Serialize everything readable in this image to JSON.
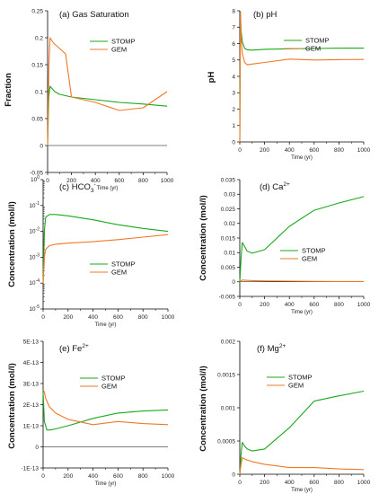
{
  "colors": {
    "STOMP": "#1aa81a",
    "GEM": "#f07828",
    "axis": "#000000"
  },
  "chart_data": [
    {
      "type": "line",
      "title": "(a) Gas Saturation",
      "xlabel": "Time (yr)",
      "ylabel": "Fraction",
      "xlim": [
        0,
        1000
      ],
      "ylim": [
        -0.05,
        0.25
      ],
      "xticks": [
        0,
        200,
        400,
        600,
        800,
        1000
      ],
      "xtick_labels": [
        "0",
        "200",
        "400",
        "600",
        "800",
        "1000"
      ],
      "yticks": [
        -0.05,
        0,
        0.05,
        0.1,
        0.15,
        0.2,
        0.25
      ],
      "ytick_labels": [
        "-0.05",
        "0",
        "0.05",
        "0.1",
        "0.15",
        "0.2",
        "0.25"
      ],
      "legend_position": "top-right",
      "series": [
        {
          "name": "STOMP",
          "x": [
            0,
            10,
            20,
            40,
            60,
            100,
            200,
            400,
            600,
            800,
            1000
          ],
          "y": [
            0.0,
            0.09,
            0.11,
            0.105,
            0.1,
            0.095,
            0.09,
            0.085,
            0.08,
            0.077,
            0.073
          ]
        },
        {
          "name": "GEM",
          "x": [
            0,
            10,
            20,
            50,
            100,
            150,
            200,
            400,
            600,
            800,
            1000
          ],
          "y": [
            0.0,
            0.14,
            0.2,
            0.19,
            0.18,
            0.17,
            0.09,
            0.08,
            0.065,
            0.07,
            0.1
          ]
        }
      ]
    },
    {
      "type": "line",
      "title": "(b) pH",
      "xlabel": "Time (yr)",
      "ylabel": "pH",
      "xlim": [
        0,
        1000
      ],
      "ylim": [
        0,
        8
      ],
      "xticks": [
        0,
        200,
        400,
        600,
        800,
        1000
      ],
      "xtick_labels": [
        "0",
        "200",
        "400",
        "600",
        "800",
        "1000"
      ],
      "yticks": [
        0,
        1,
        2,
        3,
        4,
        5,
        6,
        7,
        8
      ],
      "ytick_labels": [
        "0",
        "1",
        "2",
        "3",
        "4",
        "5",
        "6",
        "7",
        "8"
      ],
      "legend_position": "top-right",
      "series": [
        {
          "name": "STOMP",
          "x": [
            0,
            5,
            10,
            20,
            40,
            60,
            100,
            200,
            400,
            600,
            800,
            1000
          ],
          "y": [
            0,
            7.95,
            6.8,
            6.1,
            5.7,
            5.62,
            5.6,
            5.65,
            5.68,
            5.7,
            5.72,
            5.72
          ]
        },
        {
          "name": "GEM",
          "x": [
            0,
            5,
            10,
            20,
            40,
            60,
            100,
            200,
            400,
            600,
            800,
            1000
          ],
          "y": [
            0,
            7.9,
            6.3,
            5.4,
            4.85,
            4.7,
            4.75,
            4.85,
            5.05,
            5.0,
            5.02,
            5.03
          ]
        }
      ]
    },
    {
      "type": "line",
      "title": "(c) HCO",
      "title_sub": "3",
      "title_sup": "-",
      "xlabel": "Time (yr)",
      "ylabel": "Concentration (mol/l)",
      "log_y": true,
      "xlim": [
        0,
        1000
      ],
      "ylim": [
        1e-05,
        1
      ],
      "xticks": [
        0,
        200,
        400,
        600,
        800,
        1000
      ],
      "xtick_labels": [
        "0",
        "200",
        "400",
        "600",
        "800",
        "1000"
      ],
      "ytick_base": "10",
      "ytick_exps": [
        "0",
        "-1",
        "-2",
        "-3",
        "-4",
        "-5"
      ],
      "legend_position": "lower-middle",
      "series": [
        {
          "name": "STOMP",
          "x": [
            0,
            10,
            20,
            50,
            100,
            200,
            400,
            600,
            800,
            1000
          ],
          "y": [
            0.0001,
            0.01,
            0.035,
            0.045,
            0.045,
            0.04,
            0.028,
            0.018,
            0.013,
            0.01
          ]
        },
        {
          "name": "GEM",
          "x": [
            0,
            10,
            20,
            50,
            100,
            200,
            400,
            600,
            800,
            1000
          ],
          "y": [
            0.0001,
            0.001,
            0.002,
            0.0028,
            0.0032,
            0.0035,
            0.004,
            0.0048,
            0.006,
            0.0075
          ]
        }
      ]
    },
    {
      "type": "line",
      "title": "(d) Ca",
      "title_sup": "2+",
      "xlabel": "Time (yr)",
      "ylabel": "Concentration (mol/l)",
      "xlim": [
        0,
        1000
      ],
      "ylim": [
        -0.005,
        0.035
      ],
      "xticks": [
        0,
        200,
        400,
        600,
        800,
        1000
      ],
      "xtick_labels": [
        "0",
        "200",
        "400",
        "600",
        "800",
        "1000"
      ],
      "yticks": [
        -0.005,
        0,
        0.005,
        0.01,
        0.015,
        0.02,
        0.025,
        0.03,
        0.035
      ],
      "ytick_labels": [
        "-0.005",
        "0",
        "0.005",
        "0.01",
        "0.015",
        "0.02",
        "0.025",
        "0.03",
        "0.035"
      ],
      "legend_position": "middle-right",
      "series": [
        {
          "name": "STOMP",
          "x": [
            0,
            10,
            20,
            40,
            60,
            100,
            200,
            400,
            600,
            800,
            1000
          ],
          "y": [
            0.0,
            0.008,
            0.0135,
            0.012,
            0.0105,
            0.0098,
            0.011,
            0.019,
            0.0245,
            0.027,
            0.0292
          ]
        },
        {
          "name": "GEM",
          "x": [
            0,
            10,
            20,
            50,
            100,
            200,
            400,
            600,
            800,
            1000
          ],
          "y": [
            0.0,
            0.0004,
            0.0006,
            0.0005,
            0.0004,
            0.0003,
            0.0002,
            0.00015,
            0.0001,
            0.0001
          ]
        }
      ]
    },
    {
      "type": "line",
      "title": "(e) Fe",
      "title_sup": "2+",
      "xlabel": "Time (yr)",
      "ylabel": "Concentration (mol/l)",
      "xlim": [
        0,
        1000
      ],
      "ylim": [
        -1e-13,
        5e-13
      ],
      "xticks": [
        0,
        200,
        400,
        600,
        800,
        1000
      ],
      "xtick_labels": [
        "0",
        "200",
        "400",
        "600",
        "800",
        "1000"
      ],
      "yticks": [
        -1e-13,
        0,
        1e-13,
        2e-13,
        3e-13,
        4e-13,
        5e-13
      ],
      "ytick_labels": [
        "-1E-13",
        "0",
        "1E-13",
        "2E-13",
        "3E-13",
        "4E-13",
        "5E-13"
      ],
      "legend_position": "top-right",
      "series": [
        {
          "name": "STOMP",
          "x": [
            0,
            10,
            30,
            60,
            100,
            200,
            400,
            600,
            800,
            1000
          ],
          "y": [
            2.6e-13,
            1.2e-13,
            8e-14,
            8e-14,
            8.5e-14,
            1e-13,
            1.35e-13,
            1.6e-13,
            1.7e-13,
            1.75e-13
          ]
        },
        {
          "name": "GEM",
          "x": [
            0,
            10,
            20,
            50,
            100,
            200,
            400,
            600,
            800,
            1000
          ],
          "y": [
            2.7e-13,
            2.6e-13,
            2.3e-13,
            1.9e-13,
            1.6e-13,
            1.3e-13,
            1.05e-13,
            1.2e-13,
            1.1e-13,
            1.05e-13
          ]
        }
      ]
    },
    {
      "type": "line",
      "title": "(f) Mg",
      "title_sup": "2+",
      "xlabel": "Time (yr)",
      "ylabel": "Concentration (mol/l)",
      "xlim": [
        0,
        1000
      ],
      "ylim": [
        0,
        0.002
      ],
      "xticks": [
        0,
        200,
        400,
        600,
        800,
        1000
      ],
      "xtick_labels": [
        "0",
        "200",
        "400",
        "600",
        "800",
        "1000"
      ],
      "yticks": [
        0,
        0.0005,
        0.001,
        0.0015,
        0.002
      ],
      "ytick_labels": [
        "0",
        "0.0005",
        "0.001",
        "0.0015",
        "0.002"
      ],
      "legend_position": "top-middle",
      "series": [
        {
          "name": "STOMP",
          "x": [
            0,
            10,
            20,
            40,
            60,
            100,
            200,
            400,
            600,
            800,
            1000
          ],
          "y": [
            0.0,
            0.0003,
            0.00048,
            0.00042,
            0.00038,
            0.00035,
            0.00038,
            0.0007,
            0.0011,
            0.00118,
            0.00125
          ]
        },
        {
          "name": "GEM",
          "x": [
            0,
            10,
            20,
            50,
            100,
            200,
            400,
            600,
            800,
            1000
          ],
          "y": [
            0.0,
            0.00015,
            0.00025,
            0.00022,
            0.00019,
            0.00015,
            0.0001,
            0.0001,
            8e-05,
            7e-05
          ]
        }
      ]
    }
  ]
}
